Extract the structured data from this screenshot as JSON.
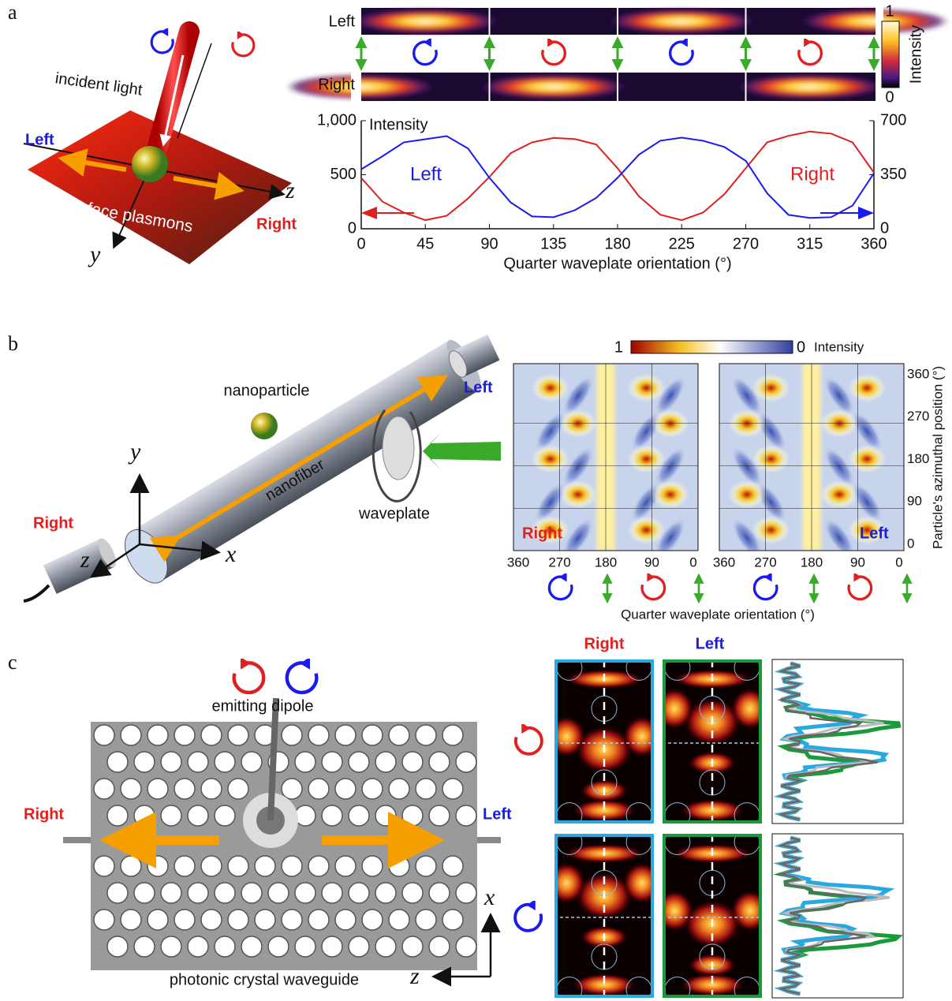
{
  "chart_data": {
    "type": "line",
    "x": [
      0,
      15,
      30,
      45,
      60,
      75,
      90,
      105,
      120,
      135,
      150,
      165,
      180,
      195,
      210,
      225,
      240,
      255,
      270,
      285,
      300,
      315,
      330,
      345,
      360
    ],
    "xlim": [
      0,
      360
    ],
    "xticks": [
      0,
      45,
      90,
      135,
      180,
      225,
      270,
      315,
      360
    ],
    "ylim": [
      0,
      1000
    ],
    "yticks": [
      0,
      500,
      {
        "value": 1000,
        "label": "1,000"
      }
    ],
    "y2lim": [
      0,
      700
    ],
    "y2ticks": [
      0,
      350,
      700
    ],
    "xlabel": "Quarter waveplate orientation (°)",
    "ylabel": "Intensity",
    "series": [
      {
        "name": "Right",
        "color": "#e02020",
        "values": [
          470,
          250,
          150,
          80,
          120,
          280,
          480,
          700,
          800,
          840,
          830,
          780,
          560,
          300,
          130,
          80,
          150,
          320,
          560,
          800,
          860,
          900,
          880,
          800,
          520
        ]
      },
      {
        "name": "Left",
        "color": "#1a1aee",
        "axis": "y2",
        "values": [
          385,
          470,
          560,
          580,
          600,
          520,
          330,
          170,
          80,
          75,
          120,
          200,
          330,
          480,
          570,
          590,
          570,
          530,
          440,
          230,
          90,
          70,
          75,
          150,
          360
        ]
      }
    ]
  },
  "figure": {
    "a": {
      "label": "a",
      "incident": "incident light",
      "left": "Left",
      "right": "Right",
      "plasmons": "surface plasmons",
      "z": "z",
      "y": "y",
      "strip_left": "Left",
      "strip_right": "Right",
      "cbar_max": "1",
      "cbar_min": "0",
      "cbar_label": "Intensity"
    },
    "b": {
      "label": "b",
      "nanoparticle": "nanoparticle",
      "nanofiber": "nanofiber",
      "waveplate": "waveplate",
      "left": "Left",
      "right": "Right",
      "x": "x",
      "y": "y",
      "z": "z",
      "cbar_max": "1",
      "cbar_min": "0",
      "cbar_label": "Intensity",
      "map_right": "Right",
      "map_left": "Left",
      "xticks": [
        "360",
        "270",
        "180",
        "90",
        "0"
      ],
      "yticks": [
        "0",
        "90",
        "180",
        "270",
        "360"
      ],
      "ylabel": "Particle's azimuthal position (°)",
      "xlabel": "Quarter waveplate orientation (°)"
    },
    "c": {
      "label": "c",
      "dipole": "emitting dipole",
      "right": "Right",
      "left": "Left",
      "waveguide": "photonic crystal waveguide",
      "x": "x",
      "z": "z",
      "col_right": "Right",
      "col_left": "Left"
    }
  }
}
